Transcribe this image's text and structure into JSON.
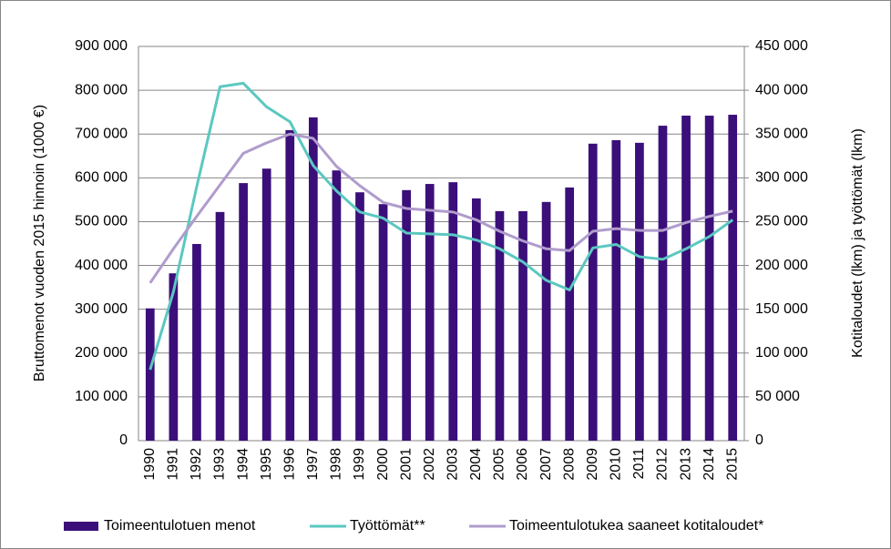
{
  "chart_data": {
    "type": "combo",
    "categories": [
      "1990",
      "1991",
      "1992",
      "1993",
      "1994",
      "1995",
      "1996",
      "1997",
      "1998",
      "1999",
      "2000",
      "2001",
      "2002",
      "2003",
      "2004",
      "2005",
      "2006",
      "2007",
      "2008",
      "2009",
      "2010",
      "2011",
      "2012",
      "2013",
      "2014",
      "2015"
    ],
    "y_label": "Bruttomenot vuoden 2015 hinnoin  (1000 €)",
    "y2_label": "Kotitaloudet (lkm)  ja  työttömät (lkm)",
    "ylim": [
      0,
      900000
    ],
    "yticks": [
      {
        "value": 0,
        "label": "0"
      },
      {
        "value": 100000,
        "label": "100 000"
      },
      {
        "value": 200000,
        "label": "200 000"
      },
      {
        "value": 300000,
        "label": "300 000"
      },
      {
        "value": 400000,
        "label": "400 000"
      },
      {
        "value": 500000,
        "label": "500 000"
      },
      {
        "value": 600000,
        "label": "600 000"
      },
      {
        "value": 700000,
        "label": "700 000"
      },
      {
        "value": 800000,
        "label": "800 000"
      },
      {
        "value": 900000,
        "label": "900 000"
      }
    ],
    "y2lim": [
      0,
      450000
    ],
    "y2ticks": [
      {
        "value": 0,
        "label": "0"
      },
      {
        "value": 50000,
        "label": "50 000"
      },
      {
        "value": 100000,
        "label": "100 000"
      },
      {
        "value": 150000,
        "label": "150 000"
      },
      {
        "value": 200000,
        "label": "200 000"
      },
      {
        "value": 250000,
        "label": "250 000"
      },
      {
        "value": 300000,
        "label": "300 000"
      },
      {
        "value": 350000,
        "label": "350 000"
      },
      {
        "value": 400000,
        "label": "400 000"
      },
      {
        "value": 450000,
        "label": "450 000"
      }
    ],
    "grid": true,
    "legend": "bottom",
    "series": [
      {
        "name": "Toimeentulotuen menot",
        "type": "bar",
        "color": "#3b0f7a",
        "values": [
          302000,
          382000,
          449000,
          522000,
          588000,
          621000,
          709000,
          738000,
          617000,
          567000,
          540000,
          572000,
          586000,
          590000,
          553000,
          524000,
          524000,
          545000,
          578000,
          678000,
          686000,
          680000,
          719000,
          742000,
          742000,
          744000
        ]
      },
      {
        "name": "Työttömät**",
        "type": "line",
        "axis": "y2",
        "color": "#5bc8c0",
        "values": [
          81000,
          170000,
          290000,
          404000,
          408000,
          381000,
          364000,
          314000,
          285000,
          261000,
          254000,
          237000,
          236000,
          235000,
          229000,
          219000,
          204000,
          183000,
          172000,
          220000,
          224000,
          210000,
          207000,
          219000,
          233000,
          252000
        ]
      },
      {
        "name": "Toimeentulotukea saaneet kotitaloudet*",
        "type": "line",
        "axis": "y2",
        "color": "#b09ccc",
        "values": [
          180000,
          219000,
          256000,
          292000,
          328000,
          340000,
          350000,
          345000,
          313000,
          291000,
          272000,
          265000,
          263000,
          261000,
          252000,
          239000,
          228000,
          219000,
          217000,
          239000,
          242000,
          240000,
          240000,
          249000,
          256000,
          262000
        ]
      }
    ]
  }
}
